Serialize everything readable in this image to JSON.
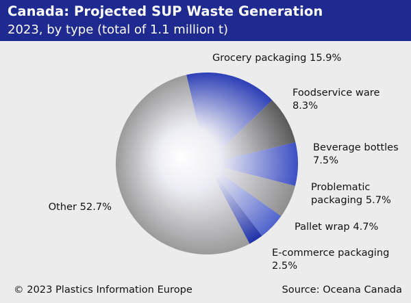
{
  "header": {
    "title": "Canada: Projected SUP Waste Generation",
    "subtitle": "2023, by type (total of 1.1 million t)"
  },
  "chart_data": {
    "type": "pie",
    "unit": "%",
    "slices": [
      {
        "label": "Grocery packaging",
        "value": 15.9,
        "color": "#2d3fb6",
        "lines": [
          "Grocery packaging 15.9%"
        ]
      },
      {
        "label": "Foodservice ware",
        "value": 8.3,
        "color": "#5a5a5a",
        "lines": [
          "Foodservice ware",
          "8.3%"
        ]
      },
      {
        "label": "Beverage bottles",
        "value": 7.5,
        "color": "#3d50c4",
        "lines": [
          "Beverage bottles",
          "7.5%"
        ]
      },
      {
        "label": "Problematic packaging",
        "value": 5.7,
        "color": "#8e8e8e",
        "lines": [
          "Problematic",
          "packaging 5.7%"
        ]
      },
      {
        "label": "Pallet wrap",
        "value": 4.7,
        "color": "#4f63cc",
        "lines": [
          "Pallet wrap 4.7%"
        ]
      },
      {
        "label": "E-commerce packaging",
        "value": 2.5,
        "color": "#1f31a8",
        "lines": [
          "E-commerce packaging",
          "2.5%"
        ]
      },
      {
        "label": "Other",
        "value": 52.7,
        "color": "#9a9a9a",
        "lines": [
          "Other 52.7%"
        ]
      }
    ]
  },
  "footer": {
    "copyright": "© 2023 Plastics Information Europe",
    "source": "Source: Oceana Canada"
  }
}
